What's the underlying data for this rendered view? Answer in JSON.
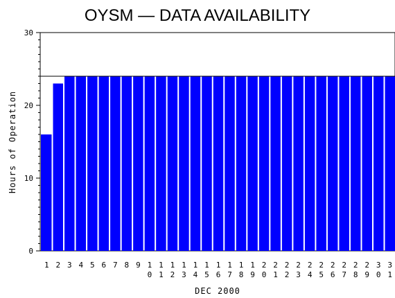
{
  "chart_data": {
    "type": "bar",
    "title": "OYSM — DATA AVAILABILITY",
    "xlabel": "DEC 2000",
    "ylabel": "Hours of Operation",
    "categories": [
      "1",
      "2",
      "3",
      "4",
      "5",
      "6",
      "7",
      "8",
      "9",
      "10",
      "11",
      "12",
      "13",
      "14",
      "15",
      "16",
      "17",
      "18",
      "19",
      "20",
      "21",
      "22",
      "23",
      "24",
      "25",
      "26",
      "27",
      "28",
      "29",
      "30",
      "31"
    ],
    "values": [
      16,
      23,
      24,
      24,
      24,
      24,
      24,
      24,
      24,
      24,
      24,
      24,
      24,
      24,
      24,
      24,
      24,
      24,
      24,
      24,
      24,
      24,
      24,
      24,
      24,
      24,
      24,
      24,
      24,
      24,
      24
    ],
    "ylim": [
      0,
      30
    ],
    "yticks": [
      "0",
      "10",
      "20",
      "30"
    ],
    "reference_line": 24,
    "bar_color": "#0000ff",
    "grid": false
  }
}
